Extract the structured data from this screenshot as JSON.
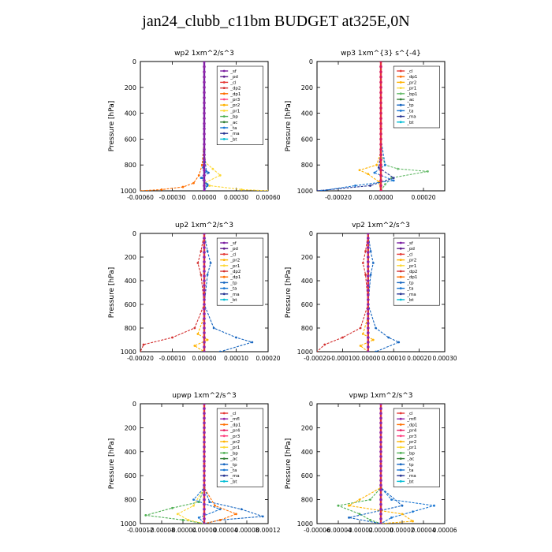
{
  "title": "jan24_clubb_c11bm  BUDGET at325E,0N",
  "colors": {
    "_sf": "#7b1fa2",
    "_pd": "#5e1a8c",
    "_cl": "#e53935",
    "_dp2": "#d32f2f",
    "_dp1": "#ff6f00",
    "_pr3": "#ff4081",
    "_pr2": "#ffb300",
    "_pr1": "#fdd835",
    "_bp": "#4caf50",
    "_ac": "#2e7d32",
    "_bp1": "#66bb6a",
    "_tp": "#1565c0",
    "_ta": "#1976d2",
    "_ma": "#283593",
    "_bt": "#00bcd4",
    "_mfl": "#8e24aa",
    "_pr4": "#e91e63"
  },
  "chart_data": [
    {
      "type": "line",
      "title": "wp2   1xm^2/s^3",
      "ylabel": "Pressure  [hPa]",
      "ylim": [
        1000,
        0
      ],
      "xlim": [
        -0.0006,
        0.0006
      ],
      "xticks": [
        -0.0006,
        -0.0003,
        0.0,
        0.0003,
        0.0006
      ],
      "xtick_labels": [
        "-0.00060",
        "-0.00030",
        "0.00000",
        "0.00030",
        "0.00060"
      ],
      "yticks": [
        0,
        200,
        400,
        600,
        800,
        1000
      ],
      "legend": [
        "_sf",
        "_pd",
        "_cl",
        "_dp2",
        "_dp1",
        "_pr3",
        "_pr2",
        "_pr1",
        "_bp",
        "_ac",
        "_ta",
        "_ma",
        "_bt"
      ],
      "legend_position": "top-right",
      "series": [
        {
          "name": "_pr1",
          "x": [
            0.0,
            0.0,
            1e-05,
            8e-05,
            0.00015,
            0.0,
            5e-05,
            0.00035,
            0.0006
          ],
          "y": [
            0,
            600,
            780,
            830,
            880,
            940,
            960,
            990,
            1000
          ]
        },
        {
          "name": "_dp1",
          "x": [
            0.0,
            0.0,
            -2e-05,
            -5e-05,
            -0.0001,
            -0.0002,
            -0.0004,
            -0.0006
          ],
          "y": [
            0,
            600,
            800,
            880,
            940,
            970,
            990,
            1000
          ]
        },
        {
          "name": "_tp",
          "x": [
            0.0,
            0.0,
            -1e-05,
            4e-05,
            -2e-05,
            3e-05,
            0.0
          ],
          "y": [
            0,
            600,
            820,
            860,
            900,
            950,
            1000
          ]
        },
        {
          "name": "_ta",
          "x": [
            0.0,
            0.0,
            2e-05,
            -3e-05,
            3e-05,
            0.0
          ],
          "y": [
            0,
            700,
            850,
            900,
            960,
            1000
          ]
        },
        {
          "name": "_sf",
          "x": [
            0.0,
            0.0,
            0.0
          ],
          "y": [
            0,
            500,
            1000
          ]
        }
      ]
    },
    {
      "type": "line",
      "title": "wp3   1xm^{3} s^{-4}",
      "ylabel": "Pressure  [hPa]",
      "ylim": [
        1000,
        0
      ],
      "xlim": [
        -0.0003,
        0.0003
      ],
      "xticks": [
        -0.0002,
        0.0,
        0.0002
      ],
      "xtick_labels": [
        "-0.00020",
        "0.00000",
        "0.00020"
      ],
      "yticks": [
        0,
        200,
        400,
        600,
        800,
        1000
      ],
      "legend": [
        "_cl",
        "_dp1",
        "_pr2",
        "_pr1",
        "_bp1",
        "_ac",
        "_tp",
        "_ta",
        "_ma",
        "_bt"
      ],
      "legend_position": "top-right",
      "series": [
        {
          "name": "_bp1",
          "x": [
            0.0,
            0.0,
            2e-05,
            8e-05,
            0.00022,
            5e-05,
            2e-05,
            0.0
          ],
          "y": [
            0,
            700,
            800,
            830,
            850,
            900,
            950,
            1000
          ]
        },
        {
          "name": "_pr2",
          "x": [
            0.0,
            0.0,
            -2e-05,
            -0.0001,
            -6e-05,
            -1e-05,
            0.0
          ],
          "y": [
            0,
            700,
            800,
            840,
            870,
            930,
            1000
          ]
        },
        {
          "name": "_ma",
          "x": [
            0.0,
            0.0,
            -1e-05,
            6e-05,
            -5e-05,
            -0.0003
          ],
          "y": [
            0,
            700,
            820,
            900,
            960,
            1000
          ]
        },
        {
          "name": "_ta",
          "x": [
            0.0,
            0.0,
            2e-05,
            -3e-05,
            6e-05,
            -0.00012,
            -0.00028
          ],
          "y": [
            0,
            600,
            800,
            860,
            920,
            960,
            1000
          ]
        },
        {
          "name": "_cl",
          "x": [
            0.0,
            0.0,
            0.0
          ],
          "y": [
            0,
            500,
            1000
          ]
        }
      ]
    },
    {
      "type": "line",
      "title": "up2   1xm^2/s^3",
      "ylabel": "Pressure  [hPa]",
      "ylim": [
        1000,
        0
      ],
      "xlim": [
        -0.0002,
        0.0002
      ],
      "xticks": [
        -0.0002,
        -0.0001,
        0.0,
        0.0001,
        0.0002
      ],
      "xtick_labels": [
        "-0.00020",
        "-0.00010",
        "0.00000",
        "0.00010",
        "0.00020"
      ],
      "yticks": [
        0,
        200,
        400,
        600,
        800,
        1000
      ],
      "legend": [
        "_sf",
        "_pd",
        "_cl",
        "_pr2",
        "_pr1",
        "_dp2",
        "_dp1",
        "_tp",
        "_ta",
        "_ma",
        "_bt"
      ],
      "legend_position": "top-right",
      "series": [
        {
          "name": "_dp2",
          "x": [
            0.0,
            -1e-05,
            -2e-05,
            -1e-05,
            0.0,
            -3e-05,
            -0.0001,
            -0.00019,
            -0.0002
          ],
          "y": [
            0,
            150,
            250,
            350,
            600,
            800,
            880,
            940,
            1000
          ]
        },
        {
          "name": "_tp",
          "x": [
            0.0,
            1e-05,
            2e-05,
            1e-05,
            0.0,
            3e-05,
            0.0001,
            0.00015,
            5e-05
          ],
          "y": [
            0,
            150,
            250,
            350,
            600,
            800,
            880,
            920,
            1000
          ]
        },
        {
          "name": "_pr2",
          "x": [
            0.0,
            0.0,
            -2e-05,
            1e-05,
            -3e-05,
            0.0
          ],
          "y": [
            0,
            700,
            850,
            900,
            950,
            1000
          ]
        },
        {
          "name": "_cl",
          "x": [
            0.0,
            0.0,
            0.0
          ],
          "y": [
            0,
            500,
            1000
          ]
        }
      ]
    },
    {
      "type": "line",
      "title": "vp2   1xm^2/s^3",
      "ylabel": "Pressure  [hPa]",
      "ylim": [
        1000,
        0
      ],
      "xlim": [
        -0.0002,
        0.0003
      ],
      "xticks": [
        -0.0002,
        -0.0001,
        0.0,
        0.0001,
        0.0002,
        0.0003
      ],
      "xtick_labels": [
        "-0.00020",
        "-0.00010",
        "0.00000",
        "0.00010",
        "0.00020",
        "0.00030"
      ],
      "yticks": [
        0,
        200,
        400,
        600,
        800,
        1000
      ],
      "legend": [
        "_sf",
        "_pd",
        "_cl",
        "_pr2",
        "_pr1",
        "_dp2",
        "_dp1",
        "_tp",
        "_ta",
        "_ma",
        "_bt"
      ],
      "legend_position": "top-right",
      "series": [
        {
          "name": "_dp2",
          "x": [
            0.0,
            -1e-05,
            -2e-05,
            -1e-05,
            0.0,
            -3e-05,
            -0.0001,
            -0.00017,
            -0.0002
          ],
          "y": [
            0,
            150,
            250,
            350,
            600,
            800,
            880,
            940,
            1000
          ]
        },
        {
          "name": "_tp",
          "x": [
            0.0,
            1e-05,
            2e-05,
            1e-05,
            0.0,
            3e-05,
            8e-05,
            0.00012,
            3e-05
          ],
          "y": [
            0,
            150,
            250,
            350,
            600,
            800,
            880,
            920,
            1000
          ]
        },
        {
          "name": "_pr2",
          "x": [
            0.0,
            0.0,
            -2e-05,
            2e-05,
            -3e-05,
            0.0
          ],
          "y": [
            0,
            700,
            850,
            900,
            950,
            1000
          ]
        },
        {
          "name": "_cl",
          "x": [
            0.0,
            0.0,
            0.0
          ],
          "y": [
            0,
            500,
            1000
          ]
        }
      ]
    },
    {
      "type": "line",
      "title": "upwp   1xm^2/s^3",
      "ylabel": "Pressure  [hPa]",
      "ylim": [
        1000,
        0
      ],
      "xlim": [
        -0.00012,
        0.00012
      ],
      "xticks": [
        -0.00012,
        -8e-05,
        -4e-05,
        0.0,
        4e-05,
        8e-05,
        0.00012
      ],
      "xtick_labels": [
        "-0.00012",
        "-0.00008",
        "-0.00004",
        "0.00000",
        "0.00004",
        "0.00008",
        "0.00012"
      ],
      "yticks": [
        0,
        200,
        400,
        600,
        800,
        1000
      ],
      "legend": [
        "_cl",
        "_mfl",
        "_dp1",
        "_pr4",
        "_pr3",
        "_pr2",
        "_pr1",
        "_bp",
        "_ac",
        "_tp",
        "_ta",
        "_ma",
        "_bt"
      ],
      "legend_position": "top-right",
      "series": [
        {
          "name": "_bp",
          "x": [
            0.0,
            0.0,
            -1e-05,
            -6e-05,
            -0.00011,
            -4e-05,
            0.0
          ],
          "y": [
            0,
            700,
            820,
            870,
            930,
            970,
            1000
          ]
        },
        {
          "name": "_tp",
          "x": [
            0.0,
            0.0,
            1e-05,
            7e-05,
            0.00011,
            3e-05,
            0.0
          ],
          "y": [
            0,
            700,
            820,
            880,
            940,
            970,
            1000
          ]
        },
        {
          "name": "_pr1",
          "x": [
            0.0,
            0.0,
            -2e-05,
            -5e-05,
            -3e-05,
            0.0
          ],
          "y": [
            0,
            700,
            850,
            920,
            970,
            1000
          ]
        },
        {
          "name": "_dp1",
          "x": [
            0.0,
            0.0,
            2e-05,
            6e-05,
            3e-05,
            0.0
          ],
          "y": [
            0,
            700,
            850,
            920,
            970,
            1000
          ]
        },
        {
          "name": "_ta",
          "x": [
            0.0,
            0.0,
            -2e-05,
            3e-05,
            -1e-05,
            0.0
          ],
          "y": [
            0,
            700,
            800,
            880,
            950,
            1000
          ]
        },
        {
          "name": "_cl",
          "x": [
            0.0,
            0.0,
            0.0
          ],
          "y": [
            0,
            500,
            1000
          ]
        }
      ]
    },
    {
      "type": "line",
      "title": "vpwp   1xm^2/s^3",
      "ylabel": "Pressure  [hPa]",
      "ylim": [
        1000,
        0
      ],
      "xlim": [
        -6e-05,
        6e-05
      ],
      "xticks": [
        -6e-05,
        -4e-05,
        -2e-05,
        0.0,
        2e-05,
        4e-05,
        6e-05
      ],
      "xtick_labels": [
        "-0.00006",
        "-0.00004",
        "-0.00002",
        "0.00000",
        "0.00002",
        "0.00004",
        "0.00006"
      ],
      "yticks": [
        0,
        200,
        400,
        600,
        800,
        1000
      ],
      "legend": [
        "_cl",
        "_mfl",
        "_dp1",
        "_pr4",
        "_pr3",
        "_pr2",
        "_pr1",
        "_bp",
        "_ac",
        "_tp",
        "_ta",
        "_ma",
        "_bt"
      ],
      "legend_position": "top-right",
      "series": [
        {
          "name": "_ta",
          "x": [
            0.0,
            0.0,
            1e-05,
            5e-05,
            3e-05,
            1e-05,
            0.0
          ],
          "y": [
            0,
            700,
            800,
            850,
            900,
            950,
            1000
          ]
        },
        {
          "name": "_bp",
          "x": [
            0.0,
            0.0,
            -1e-05,
            -4e-05,
            -2e-05,
            -1e-05,
            0.0
          ],
          "y": [
            0,
            700,
            800,
            850,
            920,
            970,
            1000
          ]
        },
        {
          "name": "_pr2",
          "x": [
            0.0,
            0.0,
            -2e-05,
            -3e-05,
            2e-05,
            3e-05,
            0.0
          ],
          "y": [
            0,
            700,
            800,
            850,
            920,
            980,
            1000
          ]
        },
        {
          "name": "_tp",
          "x": [
            0.0,
            0.0,
            2e-05,
            -3e-05,
            0.0
          ],
          "y": [
            0,
            700,
            850,
            950,
            1000
          ]
        },
        {
          "name": "_cl",
          "x": [
            0.0,
            0.0,
            0.0
          ],
          "y": [
            0,
            500,
            1000
          ]
        }
      ]
    }
  ]
}
